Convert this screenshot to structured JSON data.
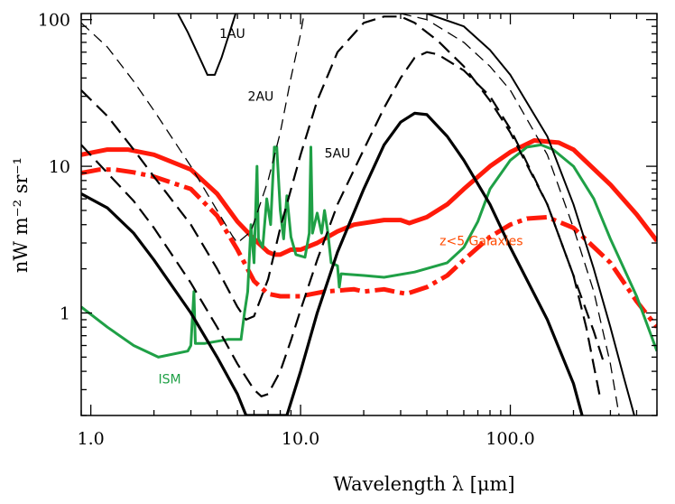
{
  "chart_data": {
    "type": "line",
    "title": "",
    "xlabel": "Wavelength λ [μm]",
    "ylabel": "nW m⁻² sr⁻¹",
    "xscale": "log",
    "yscale": "log",
    "xlim": [
      0.9,
      500
    ],
    "ylim": [
      0.2,
      110
    ],
    "grid": false,
    "xticks": [
      {
        "value": 1,
        "label": "1.0"
      },
      {
        "value": 10,
        "label": "10.0"
      },
      {
        "value": 100,
        "label": "100.0"
      }
    ],
    "yticks": [
      {
        "value": 1,
        "label": "1"
      },
      {
        "value": 10,
        "label": "10"
      },
      {
        "value": 100,
        "label": "100"
      }
    ],
    "annotations": [
      {
        "text": "1AU",
        "x": 4.1,
        "y": 75,
        "color": "#000000"
      },
      {
        "text": "2AU",
        "x": 5.6,
        "y": 28,
        "color": "#000000"
      },
      {
        "text": "5AU",
        "x": 13.0,
        "y": 11.5,
        "color": "#000000"
      },
      {
        "text": "z<5 Galaxies",
        "x": 46.0,
        "y": 2.9,
        "color": "#ff4a00"
      },
      {
        "text": "ISM",
        "x": 2.1,
        "y": 0.33,
        "color": "#1fa046"
      }
    ],
    "series": [
      {
        "color": "#ff1a0a",
        "style": "solid",
        "width": 5,
        "points": [
          [
            0.9,
            12
          ],
          [
            1.2,
            13
          ],
          [
            1.5,
            13
          ],
          [
            2.0,
            12
          ],
          [
            3.0,
            9.5
          ],
          [
            4.0,
            6.5
          ],
          [
            5.0,
            4.2
          ],
          [
            6.0,
            3.2
          ],
          [
            7.0,
            2.6
          ],
          [
            7.5,
            2.5
          ],
          [
            8.0,
            2.5
          ],
          [
            9.0,
            2.7
          ],
          [
            10,
            2.7
          ],
          [
            12,
            3.0
          ],
          [
            15,
            3.6
          ],
          [
            18,
            4.0
          ],
          [
            25,
            4.3
          ],
          [
            30,
            4.3
          ],
          [
            33,
            4.1
          ],
          [
            40,
            4.5
          ],
          [
            50,
            5.5
          ],
          [
            60,
            7
          ],
          [
            80,
            10
          ],
          [
            100,
            12.5
          ],
          [
            130,
            15
          ],
          [
            170,
            14.5
          ],
          [
            200,
            13
          ],
          [
            300,
            7.5
          ],
          [
            400,
            4.7
          ],
          [
            500,
            3.1
          ]
        ]
      },
      {
        "color": "#ff1a0a",
        "style": "dashdot",
        "width": 5,
        "points": [
          [
            0.9,
            9
          ],
          [
            1.1,
            9.5
          ],
          [
            1.3,
            9.5
          ],
          [
            1.6,
            9.1
          ],
          [
            2.0,
            8.5
          ],
          [
            3.0,
            7
          ],
          [
            4.0,
            4.6
          ],
          [
            5.0,
            2.7
          ],
          [
            6.0,
            1.65
          ],
          [
            7.0,
            1.35
          ],
          [
            8.0,
            1.3
          ],
          [
            10,
            1.3
          ],
          [
            13,
            1.4
          ],
          [
            18,
            1.45
          ],
          [
            20,
            1.4
          ],
          [
            25,
            1.45
          ],
          [
            28,
            1.4
          ],
          [
            32,
            1.35
          ],
          [
            40,
            1.5
          ],
          [
            50,
            1.8
          ],
          [
            60,
            2.3
          ],
          [
            80,
            3.3
          ],
          [
            100,
            4.0
          ],
          [
            120,
            4.4
          ],
          [
            150,
            4.5
          ],
          [
            200,
            3.8
          ],
          [
            300,
            2.2
          ],
          [
            400,
            1.2
          ],
          [
            500,
            0.8
          ]
        ]
      },
      {
        "color": "#1fa046",
        "style": "solid",
        "width": 3,
        "points": [
          [
            0.9,
            1.1
          ],
          [
            1.2,
            0.8
          ],
          [
            1.6,
            0.6
          ],
          [
            2.1,
            0.5
          ],
          [
            2.9,
            0.55
          ],
          [
            3.0,
            0.6
          ],
          [
            3.1,
            1.4
          ],
          [
            3.15,
            0.62
          ],
          [
            3.5,
            0.62
          ],
          [
            4.5,
            0.66
          ],
          [
            5.2,
            0.66
          ],
          [
            5.4,
            1.0
          ],
          [
            5.6,
            1.4
          ],
          [
            5.8,
            4.0
          ],
          [
            6.0,
            2.2
          ],
          [
            6.2,
            10.0
          ],
          [
            6.3,
            3.2
          ],
          [
            6.6,
            2.8
          ],
          [
            6.9,
            6.0
          ],
          [
            7.2,
            4.0
          ],
          [
            7.5,
            13.5
          ],
          [
            7.7,
            13.5
          ],
          [
            8.0,
            5.0
          ],
          [
            8.3,
            3.2
          ],
          [
            8.6,
            6.3
          ],
          [
            9.0,
            3.3
          ],
          [
            9.5,
            2.5
          ],
          [
            10.5,
            2.4
          ],
          [
            11.0,
            3.5
          ],
          [
            11.2,
            13.5
          ],
          [
            11.4,
            3.5
          ],
          [
            12.0,
            4.8
          ],
          [
            12.6,
            3.5
          ],
          [
            13.0,
            5.0
          ],
          [
            13.5,
            3.5
          ],
          [
            14.0,
            2.2
          ],
          [
            15.0,
            2.1
          ],
          [
            15.3,
            1.5
          ],
          [
            15.6,
            1.85
          ],
          [
            20,
            1.8
          ],
          [
            25,
            1.75
          ],
          [
            35,
            1.9
          ],
          [
            50,
            2.2
          ],
          [
            60,
            2.8
          ],
          [
            70,
            4.2
          ],
          [
            80,
            7
          ],
          [
            100,
            11
          ],
          [
            120,
            13.5
          ],
          [
            140,
            14
          ],
          [
            160,
            13
          ],
          [
            200,
            10
          ],
          [
            250,
            6
          ],
          [
            300,
            3.2
          ],
          [
            400,
            1.3
          ],
          [
            500,
            0.55
          ]
        ]
      },
      {
        "color": "#000000",
        "style": "solid",
        "width": 2,
        "points": [
          [
            2.6,
            110
          ],
          [
            2.9,
            82
          ],
          [
            3.3,
            55
          ],
          [
            3.6,
            42
          ],
          [
            3.9,
            42
          ],
          [
            4.2,
            55
          ],
          [
            4.5,
            75
          ],
          [
            4.8,
            100
          ],
          [
            4.9,
            110
          ]
        ]
      },
      {
        "color": "#000000",
        "style": "dashed",
        "width": 1.3,
        "points": [
          [
            0.9,
            95
          ],
          [
            1.2,
            65
          ],
          [
            1.6,
            38
          ],
          [
            2.0,
            24
          ],
          [
            3.0,
            10
          ],
          [
            4.0,
            5.0
          ],
          [
            4.7,
            3.4
          ],
          [
            5.0,
            3.0
          ],
          [
            5.8,
            3.6
          ],
          [
            7.0,
            8
          ],
          [
            8.0,
            17
          ],
          [
            9.0,
            40
          ],
          [
            10.0,
            80
          ],
          [
            10.4,
            110
          ]
        ]
      },
      {
        "color": "#000000",
        "style": "dashed",
        "width": 2.2,
        "points": [
          [
            0.9,
            33
          ],
          [
            1.2,
            22
          ],
          [
            1.6,
            13
          ],
          [
            2.0,
            8.5
          ],
          [
            3.0,
            4.0
          ],
          [
            4.0,
            2.0
          ],
          [
            5.0,
            1.1
          ],
          [
            5.5,
            0.9
          ],
          [
            6.0,
            0.95
          ],
          [
            7.0,
            1.7
          ],
          [
            8.0,
            3.8
          ],
          [
            10,
            12
          ],
          [
            12,
            28
          ],
          [
            15,
            60
          ],
          [
            20,
            95
          ],
          [
            25,
            105
          ],
          [
            30,
            105
          ],
          [
            35,
            95
          ],
          [
            45,
            72
          ],
          [
            60,
            48
          ],
          [
            80,
            28
          ],
          [
            100,
            17
          ],
          [
            150,
            5.5
          ],
          [
            200,
            1.8
          ],
          [
            250,
            0.75
          ],
          [
            280,
            0.45
          ]
        ]
      },
      {
        "color": "#000000",
        "style": "dashed",
        "width": 2.2,
        "points": [
          [
            0.9,
            14
          ],
          [
            1.2,
            9.0
          ],
          [
            1.6,
            5.8
          ],
          [
            2.0,
            3.8
          ],
          [
            3.0,
            1.6
          ],
          [
            4.0,
            0.8
          ],
          [
            5.0,
            0.45
          ],
          [
            6.0,
            0.3
          ],
          [
            6.5,
            0.27
          ],
          [
            7.0,
            0.28
          ],
          [
            8.0,
            0.4
          ],
          [
            9.0,
            0.65
          ],
          [
            10,
            1.05
          ],
          [
            12,
            2.3
          ],
          [
            15,
            5.5
          ],
          [
            20,
            13
          ],
          [
            25,
            25
          ],
          [
            30,
            40
          ],
          [
            35,
            55
          ],
          [
            40,
            60
          ],
          [
            45,
            58
          ],
          [
            60,
            45
          ],
          [
            80,
            30
          ],
          [
            100,
            18
          ],
          [
            150,
            5.5
          ],
          [
            200,
            1.8
          ],
          [
            230,
            0.8
          ],
          [
            270,
            0.25
          ]
        ]
      },
      {
        "color": "#000000",
        "style": "solid",
        "width": 3.2,
        "points": [
          [
            0.9,
            6.5
          ],
          [
            1.2,
            5.2
          ],
          [
            1.6,
            3.5
          ],
          [
            2.0,
            2.3
          ],
          [
            3.0,
            1.0
          ],
          [
            4.0,
            0.5
          ],
          [
            5.0,
            0.28
          ],
          [
            5.5,
            0.2
          ],
          [
            8.6,
            0.2
          ],
          [
            10,
            0.4
          ],
          [
            12,
            1.0
          ],
          [
            15,
            2.6
          ],
          [
            20,
            7
          ],
          [
            25,
            14
          ],
          [
            30,
            20
          ],
          [
            35,
            23
          ],
          [
            40,
            22.5
          ],
          [
            50,
            16
          ],
          [
            60,
            11
          ],
          [
            80,
            5.5
          ],
          [
            100,
            2.8
          ],
          [
            150,
            0.9
          ],
          [
            200,
            0.33
          ],
          [
            220,
            0.2
          ]
        ]
      },
      {
        "color": "#000000",
        "style": "dashed",
        "width": 1.3,
        "points": [
          [
            30,
            110
          ],
          [
            40,
            100
          ],
          [
            60,
            70
          ],
          [
            80,
            48
          ],
          [
            100,
            33
          ],
          [
            150,
            12
          ],
          [
            200,
            3.8
          ],
          [
            250,
            1.4
          ],
          [
            300,
            0.45
          ],
          [
            330,
            0.2
          ]
        ]
      },
      {
        "color": "#000000",
        "style": "solid",
        "width": 2,
        "points": [
          [
            40,
            110
          ],
          [
            60,
            90
          ],
          [
            80,
            62
          ],
          [
            100,
            42
          ],
          [
            150,
            16
          ],
          [
            200,
            5.5
          ],
          [
            250,
            2.0
          ],
          [
            300,
            0.8
          ],
          [
            350,
            0.35
          ],
          [
            390,
            0.2
          ]
        ]
      }
    ]
  }
}
